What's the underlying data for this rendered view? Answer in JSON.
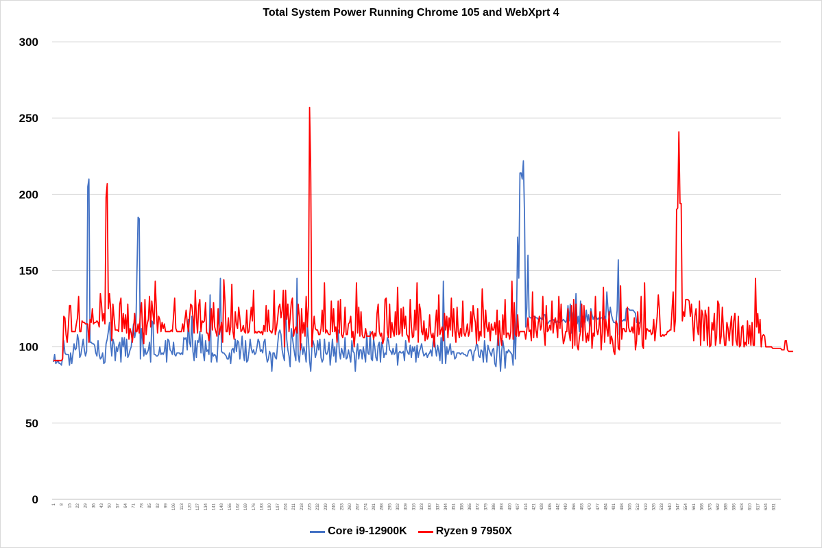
{
  "chart_data": {
    "type": "line",
    "title": "Total System Power Running Chrome 105 and WebXprt 4",
    "xlabel": "",
    "ylabel": "",
    "ylim": [
      0,
      300
    ],
    "yticks": [
      0,
      50,
      100,
      150,
      200,
      250,
      300
    ],
    "x_tick_labels": [
      "1",
      "8",
      "15",
      "22",
      "29",
      "36",
      "43",
      "50",
      "57",
      "64",
      "71",
      "78",
      "85",
      "92",
      "99",
      "106",
      "113",
      "120",
      "127",
      "134",
      "141",
      "148",
      "155",
      "162",
      "169",
      "176",
      "183",
      "190",
      "197",
      "204",
      "211",
      "218",
      "225",
      "232",
      "239",
      "246",
      "253",
      "260",
      "267",
      "274",
      "281",
      "288",
      "295",
      "302",
      "309",
      "316",
      "323",
      "330",
      "337",
      "344",
      "351",
      "358",
      "365",
      "372",
      "379",
      "386",
      "393",
      "400",
      "407",
      "414",
      "421",
      "428",
      "435",
      "442",
      "449",
      "456",
      "463",
      "470",
      "477",
      "484",
      "491",
      "498",
      "505",
      "512",
      "519",
      "526",
      "533",
      "540",
      "547",
      "554",
      "561",
      "568",
      "575",
      "582",
      "589",
      "596",
      "603",
      "610",
      "617",
      "624",
      "631"
    ],
    "x_count": 636,
    "grid": "horizontal",
    "legend_position": "bottom",
    "series": [
      {
        "name": "Core i9-12900K",
        "color": "#4472c4",
        "values": [
          90,
          95,
          89,
          90,
          91,
          89,
          89,
          88,
          93,
          104,
          96,
          95,
          95,
          95,
          88,
          96,
          89,
          95,
          102,
          98,
          99,
          108,
          104,
          93,
          95,
          100,
          105,
          98,
          94,
          97,
          205,
          210,
          103,
          103,
          102,
          102,
          101,
          96,
          94,
          104,
          95,
          92,
          93,
          96,
          89,
          90,
          102,
          105,
          110,
          116,
          102,
          94,
          105,
          102,
          91,
          100,
          97,
          101,
          103,
          90,
          106,
          100,
          106,
          94,
          105,
          93,
          95,
          98,
          100,
          108,
          115,
          106,
          110,
          149,
          185,
          184,
          92,
          112,
          104,
          94,
          99,
          95,
          96,
          98,
          103,
          90,
          117,
          116,
          95,
          95,
          94,
          94,
          95,
          100,
          95,
          96,
          95,
          97,
          104,
          90,
          105,
          104,
          98,
          97,
          95,
          103,
          95,
          94,
          96,
          96,
          96,
          95,
          96,
          95,
          106,
          105,
          106,
          98,
          118,
          103,
          100,
          120,
          97,
          91,
          104,
          93,
          104,
          103,
          110,
          96,
          108,
          96,
          91,
          104,
          97,
          98,
          95,
          134,
          90,
          96,
          94,
          95,
          94,
          90,
          105,
          113,
          145,
          97,
          96,
          96,
          95,
          94,
          92,
          92,
          96,
          89,
          98,
          99,
          96,
          105,
          97,
          104,
          103,
          92,
          99,
          107,
          96,
          91,
          104,
          90,
          91,
          97,
          105,
          99,
          96,
          98,
          95,
          96,
          100,
          105,
          103,
          97,
          98,
          96,
          103,
          105,
          95,
          90,
          92,
          97,
          95,
          84,
          96,
          96,
          93,
          92,
          101,
          109,
          111,
          108,
          98,
          94,
          91,
          134,
          105,
          98,
          94,
          87,
          112,
          106,
          100,
          95,
          91,
          145,
          95,
          90,
          99,
          102,
          95,
          100,
          96,
          90,
          115,
          105,
          91,
          84,
          99,
          104,
          101,
          93,
          96,
          104,
          98,
          105,
          93,
          90,
          92,
          105,
          96,
          95,
          97,
          103,
          88,
          96,
          105,
          94,
          100,
          90,
          102,
          111,
          97,
          92,
          99,
          96,
          93,
          106,
          92,
          93,
          98,
          94,
          90,
          104,
          97,
          96,
          84,
          96,
          102,
          92,
          98,
          98,
          92,
          100,
          95,
          90,
          109,
          96,
          95,
          110,
          92,
          91,
          105,
          100,
          93,
          91,
          101,
          103,
          90,
          103,
          100,
          93,
          96,
          95,
          106,
          104,
          98,
          97,
          95,
          99,
          95,
          96,
          102,
          88,
          96,
          97,
          96,
          96,
          97,
          91,
          104,
          98,
          96,
          95,
          101,
          93,
          100,
          97,
          100,
          90,
          101,
          93,
          97,
          99,
          102,
          97,
          94,
          95,
          96,
          93,
          95,
          96,
          98,
          94,
          103,
          107,
          99,
          94,
          101,
          97,
          91,
          106,
          89,
          143,
          106,
          89,
          100,
          95,
          98,
          102,
          95,
          97,
          97,
          92,
          93,
          96,
          96,
          96,
          95,
          96,
          96,
          95,
          95,
          94,
          94,
          97,
          98,
          98,
          95,
          91,
          97,
          98,
          102,
          101,
          94,
          93,
          98,
          97,
          90,
          104,
          97,
          90,
          101,
          98,
          96,
          94,
          98,
          99,
          89,
          87,
          98,
          111,
          98,
          84,
          97,
          104,
          99,
          86,
          97,
          96,
          98,
          97,
          96,
          95,
          88,
          118,
          92,
          120,
          172,
          145,
          214,
          214,
          210,
          222,
          186,
          113,
          126,
          160,
          120,
          119,
          119,
          119,
          120,
          120,
          119,
          119,
          118,
          118,
          119,
          118,
          118,
          121,
          121,
          116,
          115,
          116,
          117,
          117,
          118,
          118,
          117,
          116,
          116,
          117,
          116,
          116,
          117,
          117,
          118,
          117,
          116,
          118,
          127,
          117,
          128,
          109,
          121,
          124,
          113,
          135,
          115,
          120,
          110,
          130,
          113,
          120,
          117,
          116,
          124,
          117,
          121,
          113,
          125,
          121,
          118,
          120,
          121,
          119,
          118,
          119,
          118,
          119,
          119,
          118,
          120,
          118,
          136,
          125,
          119,
          126,
          121,
          118,
          116,
          116,
          115,
          124,
          157,
          108,
          117,
          117,
          117,
          118,
          117,
          125,
          125,
          125,
          124,
          124,
          124,
          124,
          123,
          122,
          116,
          116,
          116,
          115,
          121,
          121
        ],
        "values_note": ""
      },
      {
        "name": "Ryzen 9 7950X",
        "color": "#ff0000",
        "values": [
          91,
          91,
          91,
          91,
          91,
          91,
          91,
          91,
          92,
          120,
          119,
          108,
          103,
          113,
          127,
          127,
          110,
          110,
          110,
          110,
          115,
          119,
          133,
          110,
          110,
          117,
          116,
          116,
          115,
          115,
          115,
          103,
          118,
          116,
          125,
          115,
          116,
          116,
          117,
          116,
          113,
          135,
          128,
          117,
          122,
          115,
          198,
          207,
          125,
          135,
          125,
          104,
          128,
          119,
          111,
          111,
          111,
          110,
          128,
          132,
          110,
          122,
          112,
          121,
          109,
          128,
          105,
          112,
          109,
          103,
          111,
          122,
          110,
          110,
          115,
          109,
          122,
          129,
          110,
          102,
          131,
          108,
          115,
          118,
          133,
          113,
          130,
          122,
          115,
          143,
          125,
          109,
          120,
          118,
          110,
          116,
          112,
          115,
          110,
          110,
          110,
          110,
          110,
          111,
          110,
          120,
          132,
          112,
          110,
          110,
          110,
          110,
          110,
          115,
          110,
          118,
          124,
          116,
          110,
          119,
          128,
          127,
          120,
          109,
          137,
          119,
          109,
          127,
          131,
          110,
          117,
          116,
          117,
          129,
          109,
          109,
          104,
          113,
          125,
          111,
          129,
          113,
          110,
          107,
          125,
          108,
          112,
          116,
          103,
          144,
          130,
          110,
          110,
          119,
          108,
          113,
          141,
          110,
          105,
          123,
          115,
          112,
          126,
          119,
          110,
          111,
          114,
          110,
          109,
          124,
          109,
          110,
          118,
          126,
          117,
          137,
          109,
          110,
          109,
          110,
          110,
          109,
          110,
          108,
          114,
          110,
          127,
          110,
          124,
          111,
          110,
          109,
          112,
          137,
          108,
          112,
          118,
          126,
          128,
          119,
          124,
          137,
          100,
          137,
          118,
          128,
          110,
          119,
          129,
          132,
          107,
          111,
          113,
          109,
          128,
          120,
          98,
          125,
          109,
          116,
          107,
          133,
          113,
          127,
          257,
          215,
          100,
          111,
          120,
          112,
          111,
          111,
          108,
          108,
          112,
          124,
          110,
          142,
          109,
          111,
          109,
          108,
          108,
          130,
          110,
          125,
          110,
          113,
          103,
          130,
          109,
          131,
          108,
          106,
          110,
          126,
          108,
          108,
          115,
          116,
          120,
          106,
          110,
          100,
          110,
          142,
          109,
          126,
          107,
          123,
          108,
          106,
          106,
          112,
          107,
          107,
          107,
          107,
          109,
          110,
          105,
          109,
          107,
          122,
          128,
          110,
          107,
          109,
          102,
          105,
          131,
          132,
          110,
          106,
          128,
          106,
          116,
          110,
          107,
          123,
          108,
          139,
          108,
          109,
          125,
          107,
          126,
          112,
          120,
          108,
          107,
          103,
          131,
          114,
          106,
          107,
          124,
          111,
          142,
          103,
          128,
          124,
          110,
          108,
          117,
          104,
          112,
          105,
          107,
          121,
          109,
          106,
          109,
          100,
          115,
          124,
          107,
          134,
          108,
          111,
          113,
          104,
          122,
          111,
          120,
          106,
          119,
          111,
          132,
          107,
          125,
          111,
          103,
          126,
          110,
          106,
          112,
          107,
          130,
          109,
          107,
          110,
          115,
          107,
          110,
          123,
          110,
          127,
          120,
          116,
          102,
          125,
          104,
          110,
          107,
          138,
          122,
          106,
          124,
          113,
          110,
          116,
          104,
          115,
          111,
          111,
          116,
          108,
          124,
          101,
          117,
          106,
          101,
          121,
          108,
          131,
          106,
          109,
          109,
          105,
          110,
          143,
          105,
          129,
          108,
          107,
          121,
          107,
          110,
          110,
          110,
          110,
          110,
          105,
          111,
          119,
          110,
          111,
          104,
          136,
          106,
          120,
          111,
          106,
          116,
          120,
          111,
          114,
          133,
          110,
          101,
          127,
          110,
          111,
          114,
          111,
          130,
          109,
          117,
          119,
          114,
          106,
          133,
          112,
          128,
          110,
          102,
          105,
          110,
          110,
          125,
          109,
          104,
          127,
          99,
          131,
          101,
          128,
          101,
          98,
          106,
          110,
          128,
          104,
          127,
          111,
          103,
          109,
          104,
          113,
          123,
          99,
          109,
          107,
          133,
          112,
          108,
          112,
          123,
          98,
          110,
          139,
          103,
          118,
          112,
          107,
          123,
          102,
          107,
          104,
          97,
          95,
          117,
          115,
          99,
          98,
          140,
          105,
          112,
          112,
          110,
          110,
          126,
          113,
          110,
          110,
          113,
          109,
          119,
          98,
          104,
          123,
          108,
          113,
          133,
          101,
          99,
          142,
          105,
          112,
          111,
          110,
          111,
          108,
          109,
          118,
          104,
          112,
          120,
          134,
          124,
          107,
          107,
          108,
          107,
          108,
          108,
          110,
          110,
          111,
          111,
          124,
          136,
          110,
          118,
          190,
          191,
          241,
          194,
          194,
          117,
          123,
          120,
          131,
          131,
          131,
          130,
          120,
          128,
          117,
          104,
          120,
          125,
          113,
          108,
          130,
          101,
          124,
          121,
          104,
          124,
          120,
          101,
          126,
          100,
          101,
          116,
          111,
          122,
          101,
          107,
          130,
          128,
          102,
          107,
          126,
          111,
          101,
          101,
          116,
          112,
          104,
          113,
          120,
          101,
          117,
          122,
          104,
          101,
          120,
          100,
          101,
          113,
          114,
          100,
          103,
          101,
          117,
          102,
          114,
          101,
          116,
          101,
          101,
          145,
          113,
          122,
          109,
          118,
          100,
          107,
          108,
          107,
          100,
          100,
          100,
          100,
          100,
          100,
          99,
          99,
          99,
          99,
          99,
          99,
          99,
          99,
          98,
          98,
          98,
          104,
          104,
          98,
          97,
          97,
          97,
          97,
          97
        ],
        "values_note": ""
      }
    ]
  }
}
